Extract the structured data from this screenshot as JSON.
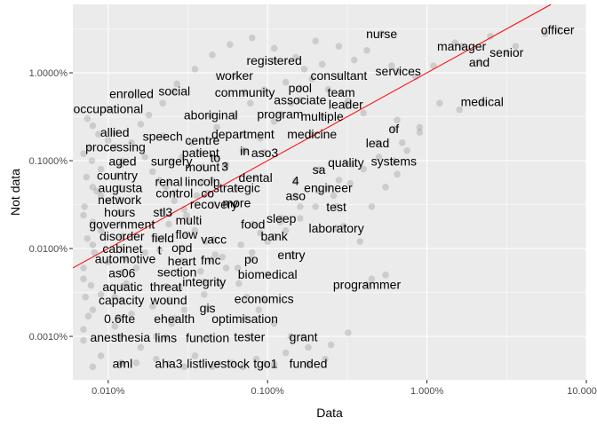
{
  "chart_data": {
    "type": "scatter",
    "title": "",
    "xlabel": "Data",
    "ylabel": "Not data",
    "x_scale": "log10",
    "y_scale": "log10",
    "xlim": [
      6e-05,
      0.1
    ],
    "ylim": [
      3.2e-06,
      0.06
    ],
    "x_ticks": [
      {
        "value": 0.0001,
        "label": "0.010%"
      },
      {
        "value": 0.001,
        "label": "0.100%"
      },
      {
        "value": 0.01,
        "label": "1.000%"
      },
      {
        "value": 0.1,
        "label": "10.000%"
      }
    ],
    "y_ticks": [
      {
        "value": 1e-05,
        "label": "0.0010%"
      },
      {
        "value": 0.0001,
        "label": "0.0100%"
      },
      {
        "value": 0.001,
        "label": "0.1000%"
      },
      {
        "value": 0.01,
        "label": "1.0000%"
      }
    ],
    "reference_line": {
      "slope": 1,
      "intercept": 0,
      "color": "#ff0000"
    },
    "grid": true,
    "point_color": "#000000",
    "labeled_points": [
      {
        "word": "officer",
        "x": 0.066,
        "y": 0.031
      },
      {
        "word": "nurse",
        "x": 0.0052,
        "y": 0.028
      },
      {
        "word": "manager",
        "x": 0.0165,
        "y": 0.02
      },
      {
        "word": "senior",
        "x": 0.0316,
        "y": 0.017
      },
      {
        "word": "and",
        "x": 0.0213,
        "y": 0.0133
      },
      {
        "word": "registered",
        "x": 0.0011,
        "y": 0.0138
      },
      {
        "word": "worker",
        "x": 0.00062,
        "y": 0.0093
      },
      {
        "word": "consultant",
        "x": 0.0028,
        "y": 0.0093
      },
      {
        "word": "services",
        "x": 0.0066,
        "y": 0.0105
      },
      {
        "word": "pool",
        "x": 0.0016,
        "y": 0.0067
      },
      {
        "word": "team",
        "x": 0.0029,
        "y": 0.006
      },
      {
        "word": "enrolled",
        "x": 0.00014,
        "y": 0.0058
      },
      {
        "word": "social",
        "x": 0.00026,
        "y": 0.0062
      },
      {
        "word": "community",
        "x": 0.00072,
        "y": 0.006
      },
      {
        "word": "associate",
        "x": 0.0016,
        "y": 0.0049
      },
      {
        "word": "leader",
        "x": 0.0031,
        "y": 0.0044
      },
      {
        "word": "medical",
        "x": 0.0222,
        "y": 0.0047
      },
      {
        "word": "occupational",
        "x": 0.0001,
        "y": 0.0039
      },
      {
        "word": "aboriginal",
        "x": 0.00044,
        "y": 0.0033
      },
      {
        "word": "program",
        "x": 0.0012,
        "y": 0.0034
      },
      {
        "word": "multiple",
        "x": 0.0022,
        "y": 0.0032
      },
      {
        "word": "allied",
        "x": 0.00011,
        "y": 0.0021
      },
      {
        "word": "speech",
        "x": 0.00022,
        "y": 0.0019
      },
      {
        "word": "department",
        "x": 0.0007,
        "y": 0.002
      },
      {
        "word": "medicine",
        "x": 0.0019,
        "y": 0.002
      },
      {
        "word": "of",
        "x": 0.0062,
        "y": 0.0023
      },
      {
        "word": "lead",
        "x": 0.0049,
        "y": 0.0016
      },
      {
        "word": "centre",
        "x": 0.00039,
        "y": 0.0017
      },
      {
        "word": "processing",
        "x": 0.000111,
        "y": 0.00143
      },
      {
        "word": "patient",
        "x": 0.00038,
        "y": 0.00124
      },
      {
        "word": "in",
        "x": 0.00072,
        "y": 0.00129
      },
      {
        "word": "aso3",
        "x": 0.00096,
        "y": 0.00124
      },
      {
        "word": "aged",
        "x": 0.000123,
        "y": 0.00099
      },
      {
        "word": "surgery",
        "x": 0.00025,
        "y": 0.00099
      },
      {
        "word": "to",
        "x": 0.00047,
        "y": 0.00108
      },
      {
        "word": "quality",
        "x": 0.0031,
        "y": 0.00095
      },
      {
        "word": "systems",
        "x": 0.0062,
        "y": 0.00099
      },
      {
        "word": "mount",
        "x": 0.00039,
        "y": 0.00085
      },
      {
        "word": "3",
        "x": 0.00054,
        "y": 0.00086
      },
      {
        "word": "sa",
        "x": 0.0021,
        "y": 0.00079
      },
      {
        "word": "country",
        "x": 0.000114,
        "y": 0.00068
      },
      {
        "word": "dental",
        "x": 0.00084,
        "y": 0.00064
      },
      {
        "word": "renal",
        "x": 0.00024,
        "y": 0.00058
      },
      {
        "word": "lincoln",
        "x": 0.00039,
        "y": 0.00058
      },
      {
        "word": "4",
        "x": 0.0015,
        "y": 0.00059
      },
      {
        "word": "augusta",
        "x": 0.000119,
        "y": 0.00049
      },
      {
        "word": "strategic",
        "x": 0.00064,
        "y": 0.00049
      },
      {
        "word": "engineer",
        "x": 0.0024,
        "y": 0.00049
      },
      {
        "word": "control",
        "x": 0.00026,
        "y": 0.00043
      },
      {
        "word": "co",
        "x": 0.00042,
        "y": 0.00043
      },
      {
        "word": "aso",
        "x": 0.0015,
        "y": 0.0004
      },
      {
        "word": "network",
        "x": 0.000118,
        "y": 0.00036
      },
      {
        "word": "more",
        "x": 0.00064,
        "y": 0.00033
      },
      {
        "word": "recovery",
        "x": 0.00046,
        "y": 0.00032
      },
      {
        "word": "test",
        "x": 0.0027,
        "y": 0.0003
      },
      {
        "word": "hours",
        "x": 0.000118,
        "y": 0.00026
      },
      {
        "word": "stl3",
        "x": 0.00022,
        "y": 0.00026
      },
      {
        "word": "sleep",
        "x": 0.00122,
        "y": 0.00022
      },
      {
        "word": "multi",
        "x": 0.00032,
        "y": 0.00021
      },
      {
        "word": "government",
        "x": 0.000122,
        "y": 0.00019
      },
      {
        "word": "food",
        "x": 0.00081,
        "y": 0.00019
      },
      {
        "word": "laboratory",
        "x": 0.0027,
        "y": 0.00017
      },
      {
        "word": "disorder",
        "x": 0.000122,
        "y": 0.000138
      },
      {
        "word": "field",
        "x": 0.00022,
        "y": 0.000133
      },
      {
        "word": "flow",
        "x": 0.00031,
        "y": 0.000145
      },
      {
        "word": "vacc",
        "x": 0.00046,
        "y": 0.000127
      },
      {
        "word": "bank",
        "x": 0.0011,
        "y": 0.000138
      },
      {
        "word": "cabinet",
        "x": 0.000123,
        "y": 0.0001
      },
      {
        "word": "t",
        "x": 0.00021,
        "y": 9.7e-05
      },
      {
        "word": "opd",
        "x": 0.00029,
        "y": 0.000102
      },
      {
        "word": "entry",
        "x": 0.00141,
        "y": 8.5e-05
      },
      {
        "word": "automotive",
        "x": 0.000128,
        "y": 7.7e-05
      },
      {
        "word": "heart",
        "x": 0.00029,
        "y": 7.2e-05
      },
      {
        "word": "fmc",
        "x": 0.00044,
        "y": 7.4e-05
      },
      {
        "word": "po",
        "x": 0.00079,
        "y": 7.6e-05
      },
      {
        "word": "as06",
        "x": 0.000122,
        "y": 5.3e-05
      },
      {
        "word": "section",
        "x": 0.00027,
        "y": 5.4e-05
      },
      {
        "word": "biomedical",
        "x": 0.001,
        "y": 5.1e-05
      },
      {
        "word": "aquatic",
        "x": 0.000123,
        "y": 3.7e-05
      },
      {
        "word": "threat",
        "x": 0.00023,
        "y": 3.7e-05
      },
      {
        "word": "integrity",
        "x": 0.0004,
        "y": 4.2e-05
      },
      {
        "word": "programmer",
        "x": 0.0042,
        "y": 3.9e-05
      },
      {
        "word": "capacity",
        "x": 0.000121,
        "y": 2.6e-05
      },
      {
        "word": "wound",
        "x": 0.00024,
        "y": 2.6e-05
      },
      {
        "word": "economics",
        "x": 0.00095,
        "y": 2.7e-05
      },
      {
        "word": "gis",
        "x": 0.00042,
        "y": 2.1e-05
      },
      {
        "word": "0.6fte",
        "x": 0.000118,
        "y": 1.6e-05
      },
      {
        "word": "ehealth",
        "x": 0.00026,
        "y": 1.6e-05
      },
      {
        "word": "optimisation",
        "x": 0.00072,
        "y": 1.6e-05
      },
      {
        "word": "anesthesia",
        "x": 0.000119,
        "y": 9.8e-06
      },
      {
        "word": "lims",
        "x": 0.00023,
        "y": 9.7e-06
      },
      {
        "word": "function",
        "x": 0.00042,
        "y": 9.7e-06
      },
      {
        "word": "tester",
        "x": 0.00077,
        "y": 9.9e-06
      },
      {
        "word": "grant",
        "x": 0.00168,
        "y": 9.9e-06
      },
      {
        "word": "aml",
        "x": 0.000123,
        "y": 4.9e-06
      },
      {
        "word": "aha3",
        "x": 0.00024,
        "y": 4.9e-06
      },
      {
        "word": "listlivestock",
        "x": 0.00049,
        "y": 4.9e-06
      },
      {
        "word": "tgo1",
        "x": 0.00097,
        "y": 4.9e-06
      },
      {
        "word": "funded",
        "x": 0.0018,
        "y": 4.9e-06
      }
    ],
    "background_points": [
      [
        8e-05,
        4.5e-06
      ],
      [
        9e-05,
        6e-06
      ],
      [
        7e-05,
        9e-06
      ],
      [
        0.00011,
        1.3e-05
      ],
      [
        8e-05,
        2e-05
      ],
      [
        9e-05,
        3e-05
      ],
      [
        7e-05,
        4.5e-05
      ],
      [
        0.0001,
        7e-05
      ],
      [
        8e-05,
        0.00011
      ],
      [
        9e-05,
        0.00016
      ],
      [
        7e-05,
        0.00024
      ],
      [
        0.0001,
        0.00035
      ],
      [
        8e-05,
        0.0005
      ],
      [
        9e-05,
        0.0008
      ],
      [
        7e-05,
        0.0012
      ],
      [
        0.0001,
        0.0017
      ],
      [
        8e-05,
        0.0025
      ],
      [
        9e-05,
        0.0004
      ],
      [
        0.00012,
        0.0009
      ],
      [
        0.00016,
        0.0026
      ],
      [
        0.00018,
        0.0033
      ],
      [
        0.00022,
        0.0045
      ],
      [
        0.00027,
        0.0075
      ],
      [
        0.00035,
        0.011
      ],
      [
        0.00045,
        0.016
      ],
      [
        0.00058,
        0.021
      ],
      [
        0.0008,
        0.025
      ],
      [
        0.0011,
        0.019
      ],
      [
        0.0015,
        0.015
      ],
      [
        0.002,
        0.023
      ],
      [
        0.0028,
        0.02
      ],
      [
        0.0035,
        0.014
      ],
      [
        0.0042,
        0.018
      ],
      [
        0.006,
        0.012
      ],
      [
        0.0085,
        0.009
      ],
      [
        0.011,
        0.012
      ],
      [
        0.015,
        0.022
      ],
      [
        0.025,
        0.026
      ],
      [
        0.036,
        0.02
      ],
      [
        0.055,
        0.028
      ],
      [
        0.012,
        0.0045
      ],
      [
        0.016,
        0.0038
      ],
      [
        0.009,
        0.0024
      ],
      [
        0.007,
        0.0016
      ],
      [
        0.005,
        0.0011
      ],
      [
        0.004,
        0.0008
      ],
      [
        0.0033,
        0.00055
      ],
      [
        0.0026,
        0.0004
      ],
      [
        0.002,
        0.0003
      ],
      [
        0.0016,
        0.00022
      ],
      [
        0.0013,
        0.00016
      ],
      [
        0.001,
        0.00012
      ],
      [
        0.0008,
        9e-05
      ],
      [
        0.00065,
        6e-05
      ],
      [
        0.0005,
        4e-05
      ],
      [
        0.0004,
        3e-05
      ],
      [
        0.0003,
        2e-05
      ],
      [
        0.00025,
        1.4e-05
      ],
      [
        0.0002,
        1e-05
      ],
      [
        0.00016,
        7.5e-06
      ],
      [
        0.0006,
        5e-06
      ],
      [
        0.00085,
        5.5e-06
      ],
      [
        0.0013,
        6.5e-06
      ],
      [
        0.0025,
        8e-06
      ],
      [
        0.0032,
        1.1e-05
      ],
      [
        0.0045,
        4.5e-05
      ],
      [
        0.0055,
        5e-05
      ],
      [
        0.0038,
        0.00012
      ],
      [
        0.003,
        0.00018
      ],
      [
        0.0045,
        0.0003
      ],
      [
        0.0055,
        0.0005
      ],
      [
        0.0065,
        0.0007
      ],
      [
        0.0075,
        0.0013
      ],
      [
        0.009,
        0.0021
      ],
      [
        0.0065,
        0.0029
      ],
      [
        0.004,
        0.0035
      ],
      [
        0.0032,
        0.0048
      ],
      [
        0.0024,
        0.0065
      ],
      [
        0.0019,
        0.0085
      ],
      [
        0.0014,
        0.0045
      ],
      [
        0.0011,
        0.0028
      ],
      [
        0.0009,
        0.0018
      ],
      [
        0.0007,
        0.0013
      ],
      [
        0.00055,
        0.0009
      ],
      [
        0.00045,
        0.0006
      ],
      [
        0.00036,
        0.0004
      ],
      [
        0.0003,
        0.00028
      ],
      [
        0.00024,
        0.00019
      ],
      [
        0.0002,
        0.00013
      ],
      [
        0.00017,
        9e-05
      ],
      [
        0.00015,
        6e-05
      ],
      [
        0.00013,
        4e-05
      ],
      [
        0.00011,
        2.8e-05
      ],
      [
        0.00014,
        1.8e-05
      ],
      [
        0.00019,
        2.2e-05
      ],
      [
        0.00028,
        3.5e-05
      ],
      [
        0.00038,
        5.5e-05
      ],
      [
        0.00052,
        8e-05
      ],
      [
        0.00068,
        0.00011
      ],
      [
        0.0009,
        0.00015
      ],
      [
        0.0012,
        0.0002
      ],
      [
        0.0016,
        0.0003
      ],
      [
        0.0021,
        0.00045
      ],
      [
        0.0028,
        0.0006
      ],
      [
        0.0034,
        0.0009
      ],
      [
        0.00021,
        0.0006
      ],
      [
        0.00029,
        0.0011
      ],
      [
        0.00033,
        0.0016
      ],
      [
        0.00048,
        0.0024
      ],
      [
        0.00062,
        0.0033
      ],
      [
        0.00078,
        0.0045
      ],
      [
        0.00095,
        0.0064
      ],
      [
        0.0013,
        0.0078
      ],
      [
        0.0017,
        0.011
      ],
      [
        0.0022,
        0.0125
      ],
      [
        0.00014,
        0.0016
      ],
      [
        0.00017,
        0.0011
      ],
      [
        0.00019,
        0.00075
      ],
      [
        0.00023,
        0.0005
      ],
      [
        0.00026,
        0.00035
      ],
      [
        0.00031,
        0.00024
      ],
      [
        0.00035,
        0.00016
      ],
      [
        0.00041,
        0.00012
      ],
      [
        0.00047,
        8.5e-05
      ],
      [
        0.00055,
        6e-05
      ],
      [
        0.00066,
        4e-05
      ],
      [
        0.00074,
        2.8e-05
      ],
      [
        0.00088,
        2e-05
      ],
      [
        0.0011,
        1.4e-05
      ],
      [
        0.0014,
        1e-05
      ],
      [
        0.0018,
        7.5e-06
      ],
      [
        0.0023,
        5.5e-06
      ],
      [
        0.00012,
        5e-06
      ],
      [
        0.00015,
        5e-06
      ],
      [
        0.0002,
        5.5e-06
      ],
      [
        0.0003,
        4.5e-06
      ],
      [
        0.00035,
        6e-06
      ],
      [
        0.00045,
        4.5e-06
      ],
      [
        0.0007,
        4.5e-06
      ],
      [
        0.0011,
        4.8e-06
      ],
      [
        7e-05,
        1.2e-05
      ],
      [
        7.5e-05,
        1.7e-05
      ],
      [
        7.2e-05,
        2.8e-05
      ],
      [
        7.8e-05,
        3.8e-05
      ],
      [
        7e-05,
        6e-05
      ],
      [
        8.2e-05,
        9e-05
      ],
      [
        7.4e-05,
        0.00013
      ],
      [
        8e-05,
        0.0002
      ],
      [
        7.1e-05,
        0.0003
      ],
      [
        8.5e-05,
        0.00045
      ],
      [
        7.3e-05,
        0.00065
      ],
      [
        7.9e-05,
        0.001
      ],
      [
        7.6e-05,
        0.0014
      ],
      [
        8.7e-05,
        0.002
      ],
      [
        7.4e-05,
        0.003
      ]
    ]
  }
}
